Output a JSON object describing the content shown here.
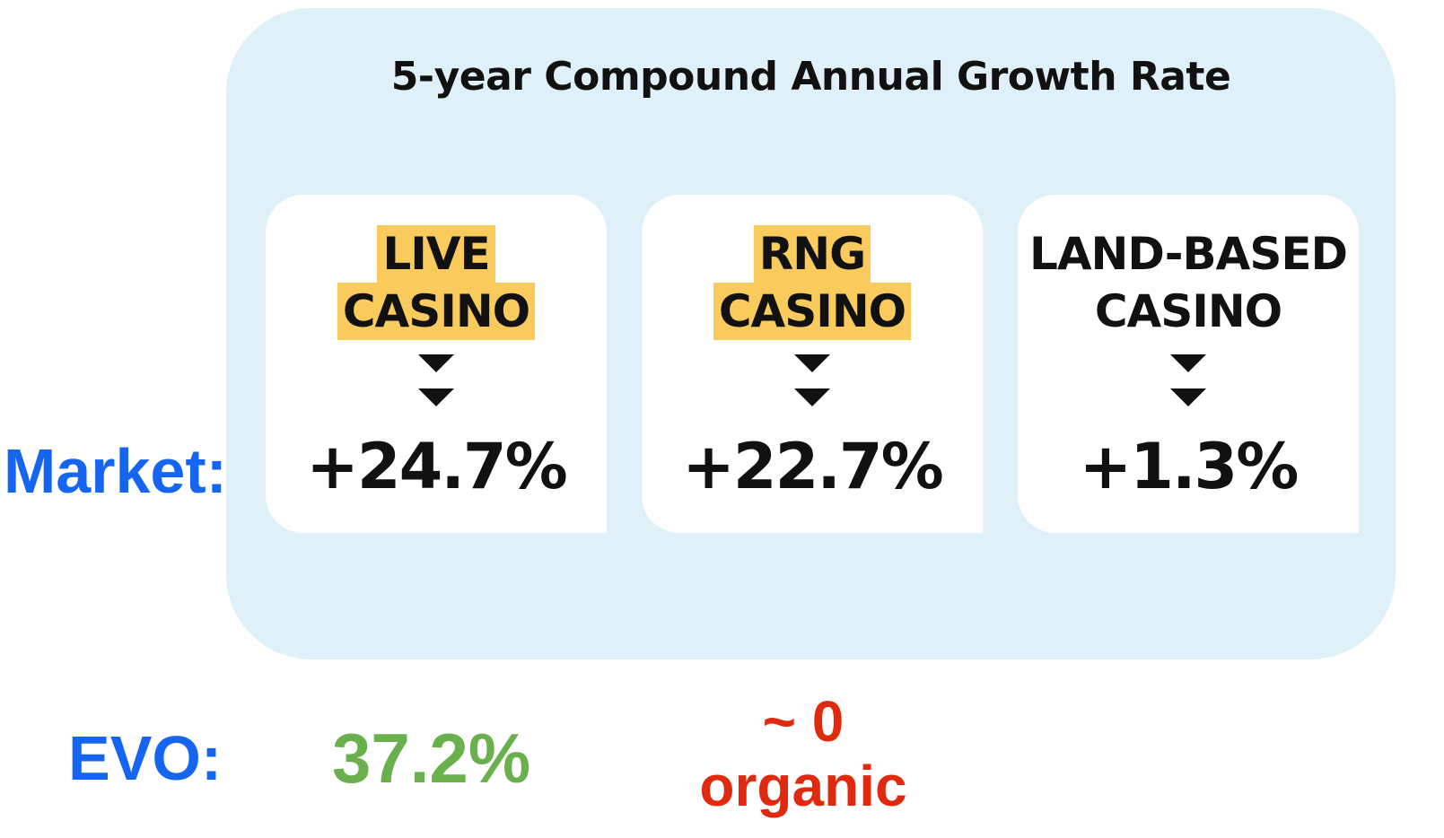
{
  "title": "5-year Compound Annual Growth Rate",
  "market_label": "Market:",
  "evo_label": "EVO:",
  "cards": [
    {
      "line1": "LIVE",
      "line2": "CASINO",
      "highlighted": true,
      "value": "+24.7%"
    },
    {
      "line1": "RNG",
      "line2": "CASINO",
      "highlighted": true,
      "value": "+22.7%"
    },
    {
      "line1": "LAND-BASED",
      "line2": "CASINO",
      "highlighted": false,
      "value": "+1.3%"
    }
  ],
  "evo": {
    "live_value": "37.2%",
    "rng_note_line1": "~ 0",
    "rng_note_line2": "organic"
  },
  "colors": {
    "panel": "#dff0f9",
    "highlight": "#f9cb5c",
    "label_blue": "#1565f0",
    "evo_green": "#6ab04c",
    "evo_red": "#e02a10"
  }
}
